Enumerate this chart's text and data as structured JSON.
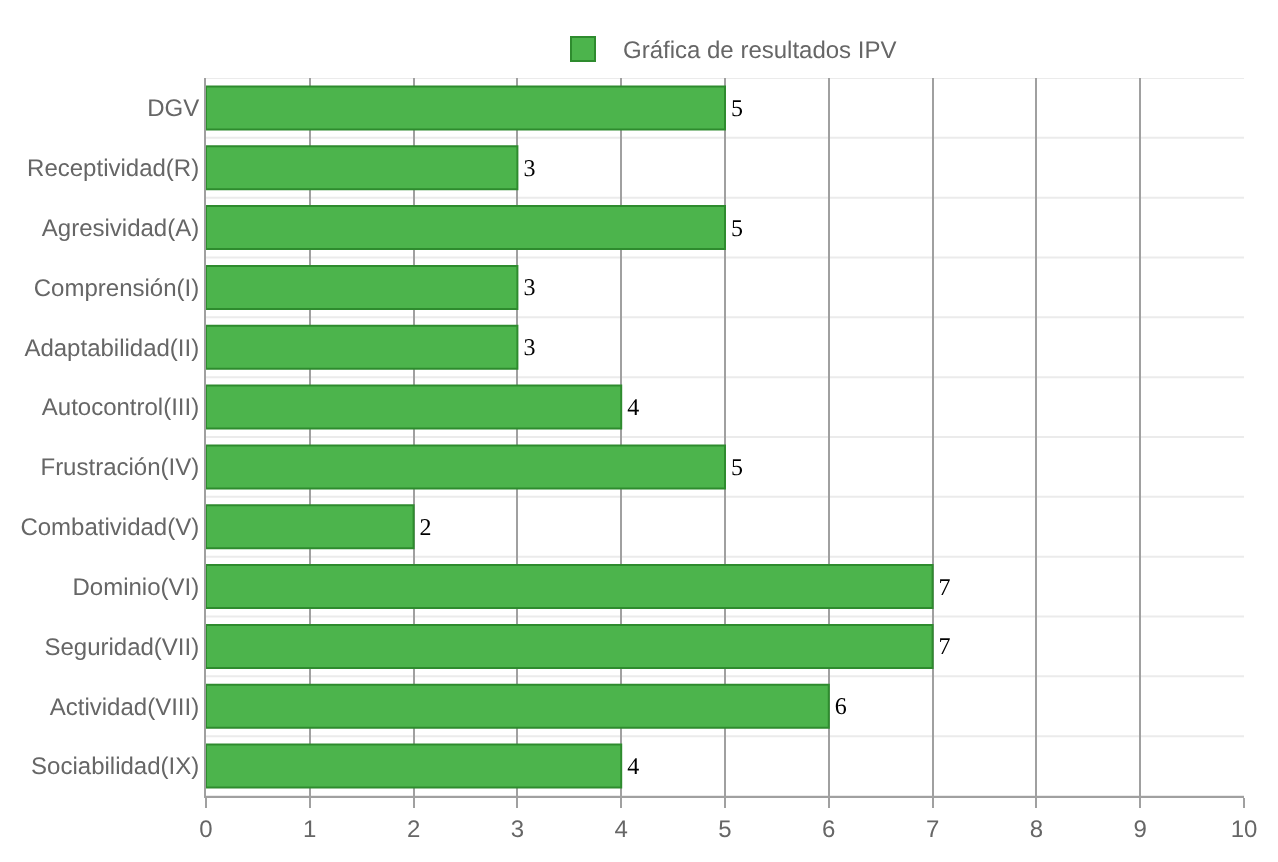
{
  "chart_data": {
    "type": "bar",
    "orientation": "horizontal",
    "categories": [
      "DGV",
      "Receptividad(R)",
      "Agresividad(A)",
      "Comprensión(I)",
      "Adaptabilidad(II)",
      "Autocontrol(III)",
      "Frustración(IV)",
      "Combatividad(V)",
      "Dominio(VI)",
      "Seguridad(VII)",
      "Actividad(VIII)",
      "Sociabilidad(IX)"
    ],
    "series": [
      {
        "name": "Gráfica de resultados IPV",
        "color": "#4cb44c",
        "values": [
          5,
          3,
          5,
          3,
          3,
          4,
          5,
          2,
          7,
          7,
          6,
          4
        ]
      }
    ],
    "xlim": [
      0,
      10
    ],
    "xticks": [
      0,
      1,
      2,
      3,
      4,
      5,
      6,
      7,
      8,
      9,
      10
    ],
    "grid": true,
    "legend": "top",
    "data_labels": true
  }
}
